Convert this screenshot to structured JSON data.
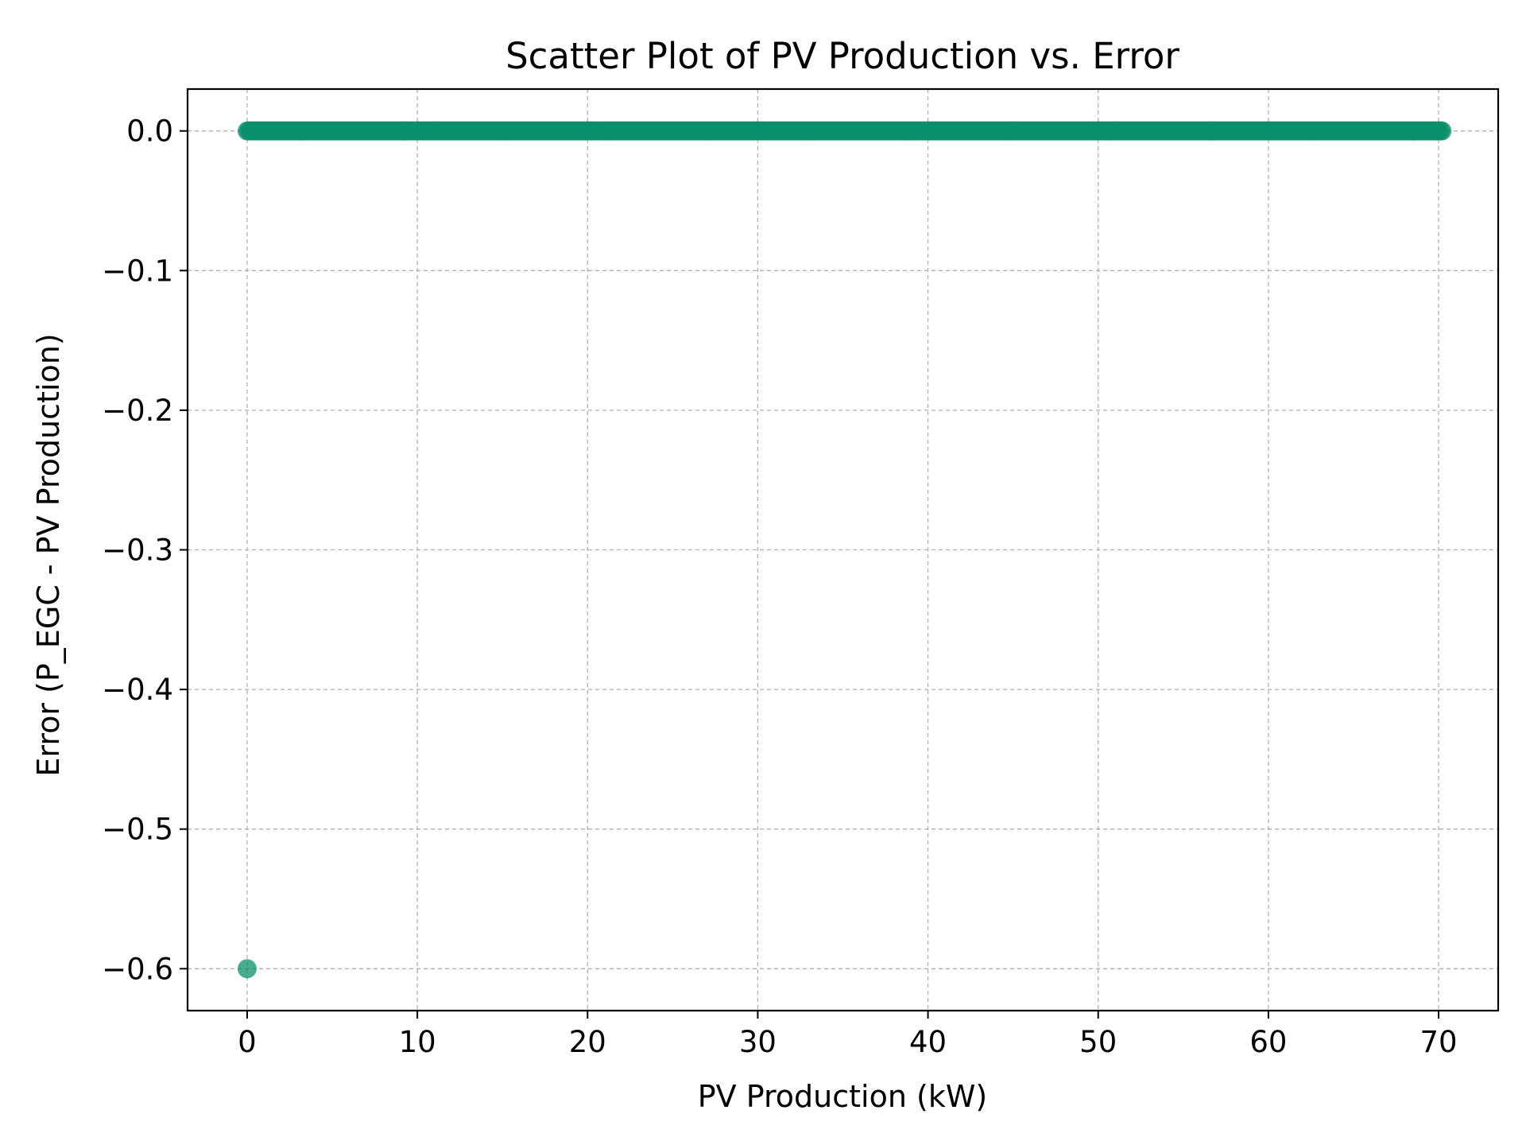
{
  "chart_data": {
    "type": "scatter",
    "title": "Scatter Plot of PV Production vs. Error",
    "xlabel": "PV Production (kW)",
    "ylabel": "Error (P_EGC - PV Production)",
    "xlim": [
      -3.5,
      73.5
    ],
    "ylim": [
      -0.63,
      0.03
    ],
    "xticks": [
      0,
      10,
      20,
      30,
      40,
      50,
      60,
      70
    ],
    "xtick_labels": [
      "0",
      "10",
      "20",
      "30",
      "40",
      "50",
      "60",
      "70"
    ],
    "yticks": [
      0.0,
      -0.1,
      -0.2,
      -0.3,
      -0.4,
      -0.5,
      -0.6
    ],
    "ytick_labels": [
      "0.0",
      "−0.1",
      "−0.2",
      "−0.3",
      "−0.4",
      "−0.5",
      "−0.6"
    ],
    "grid": true,
    "marker_color": "#0a8f6b",
    "marker_opacity": 0.75,
    "series": [
      {
        "points_description": "dense points along y = 0",
        "x_range": [
          0,
          70.2
        ],
        "x_step": 0.1,
        "y": 0.0
      },
      {
        "points": [
          {
            "x": 0,
            "y": -0.6
          }
        ]
      }
    ]
  }
}
